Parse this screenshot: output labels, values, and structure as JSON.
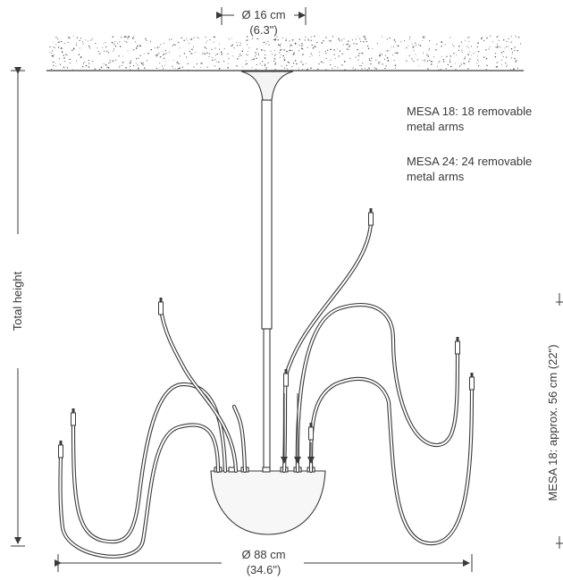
{
  "dimensions": {
    "canopy_diameter_metric": "Ø 16 cm",
    "canopy_diameter_imperial": "(6.3\")",
    "total_diameter_metric": "Ø 88 cm",
    "total_diameter_imperial": "(34.6\")",
    "total_height_label": "Total height",
    "arm_height_label": "MESA 18: approx. 56 cm (22\")"
  },
  "notes": {
    "mesa18_line1": "MESA 18: 18 removable",
    "mesa18_line2": "metal arms",
    "mesa24_line1": "MESA 24: 24 removable",
    "mesa24_line2": "metal arms"
  },
  "colors": {
    "line": "#3a3a3a",
    "stipple": "#555555"
  }
}
